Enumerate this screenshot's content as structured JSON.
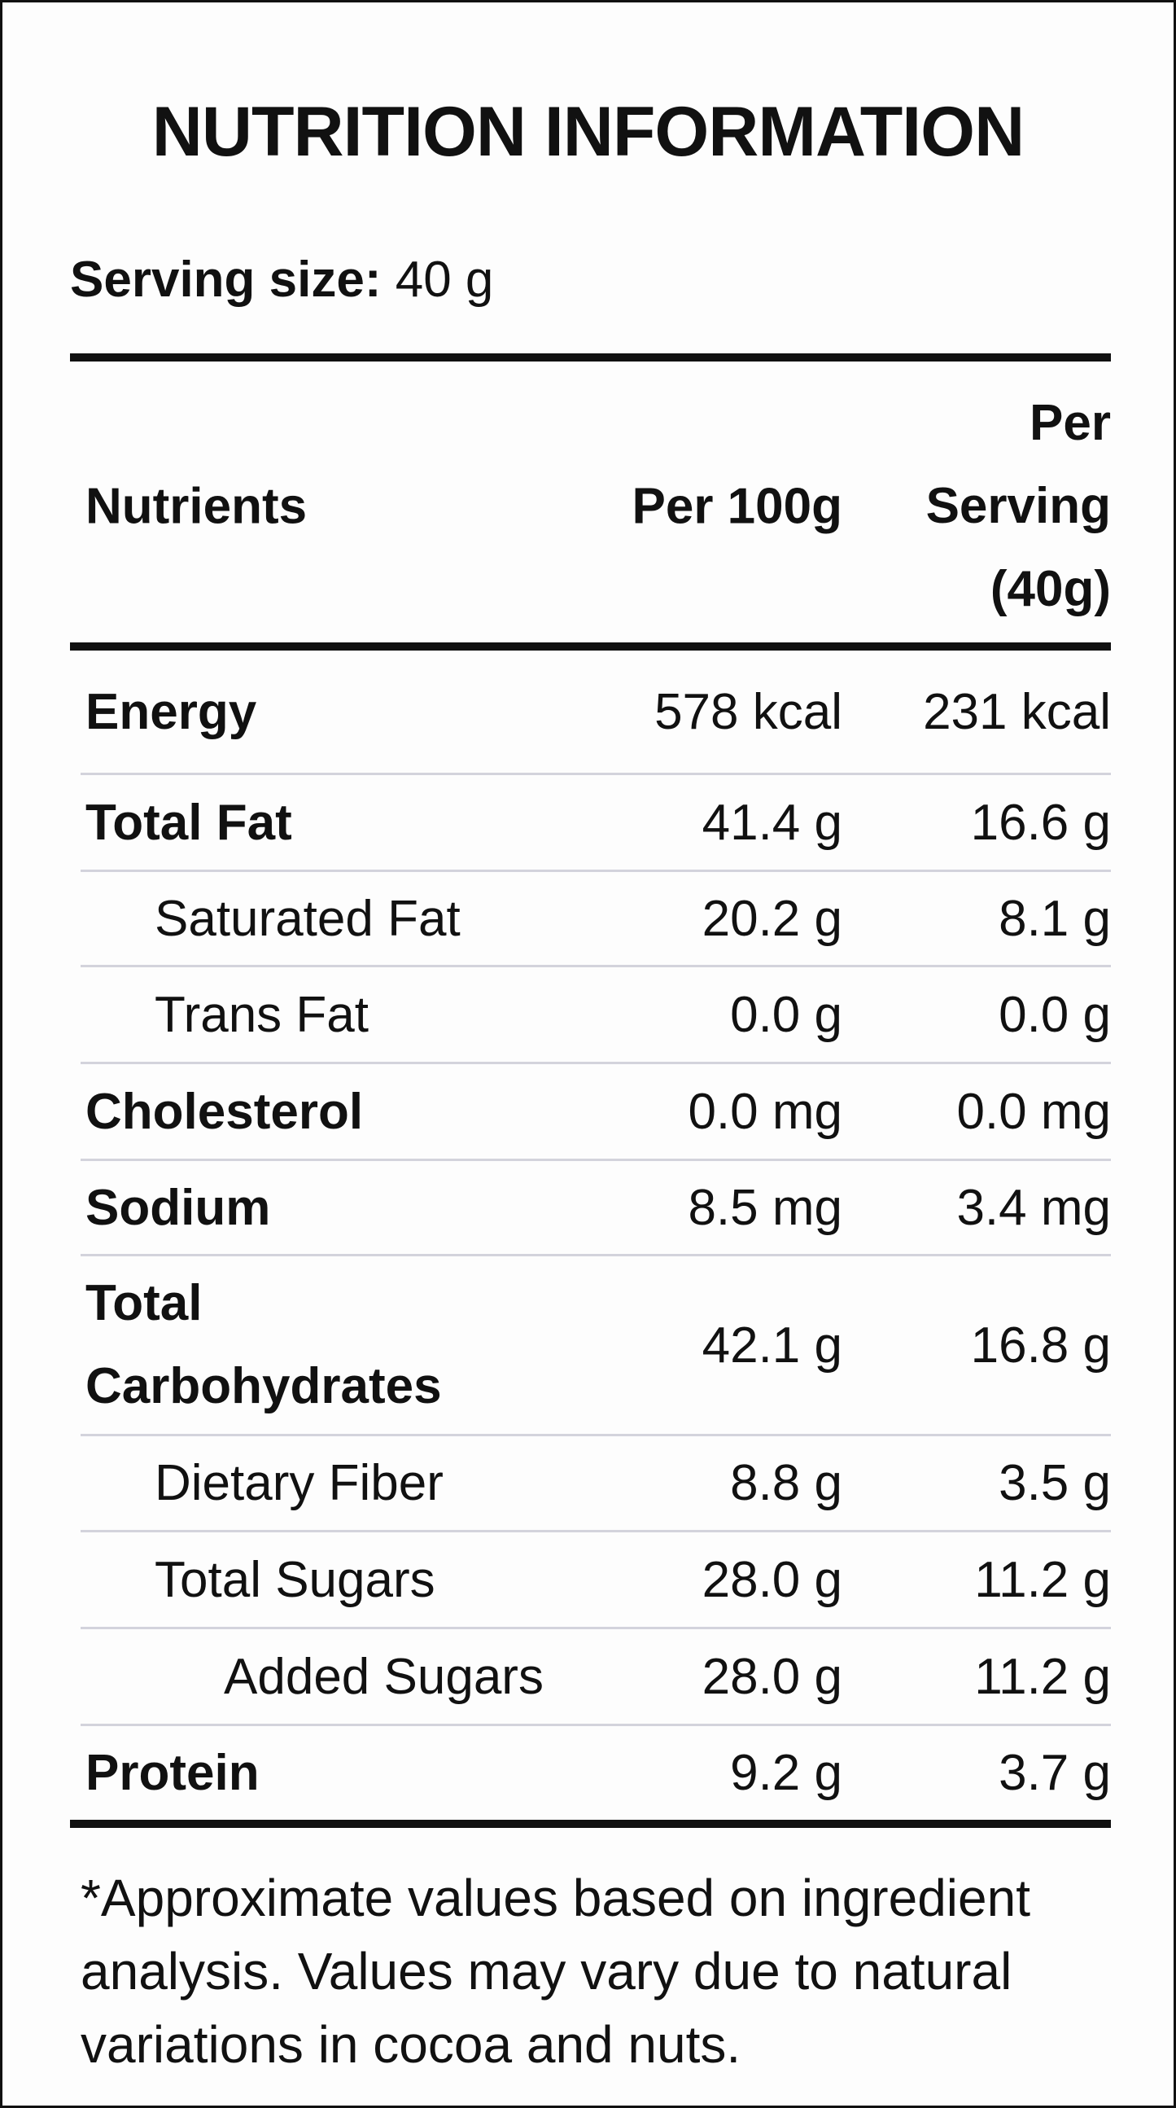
{
  "header": {
    "title": "NUTRITION INFORMATION",
    "serving_size_label": "Serving size:",
    "serving_size_value": "40 g"
  },
  "table": {
    "columns": [
      "Nutrients",
      "Per 100g",
      "Per Serving (40g)"
    ],
    "rows": [
      [
        "Energy",
        "578 kcal",
        "231 kcal"
      ],
      [
        "Total Fat",
        "41.4 g",
        "16.6 g"
      ],
      [
        "Saturated Fat",
        "20.2 g",
        "8.1 g"
      ],
      [
        "Trans Fat",
        "0.0 g",
        "0.0 g"
      ],
      [
        "Cholesterol",
        "0.0 mg",
        "0.0 mg"
      ],
      [
        "Sodium",
        "8.5 mg",
        "3.4 mg"
      ],
      [
        "Total Carbohydrates",
        "42.1 g",
        "16.8 g"
      ],
      [
        "Dietary Fiber",
        "8.8 g",
        "3.5 g"
      ],
      [
        "Total Sugars",
        "28.0 g",
        "11.2 g"
      ],
      [
        "Added Sugars",
        "28.0 g",
        "11.2 g"
      ],
      [
        "Protein",
        "9.2 g",
        "3.7 g"
      ]
    ]
  },
  "footnote": "*Approximate values based on ingredient analysis. Values may vary due to natural variations in cocoa and nuts."
}
